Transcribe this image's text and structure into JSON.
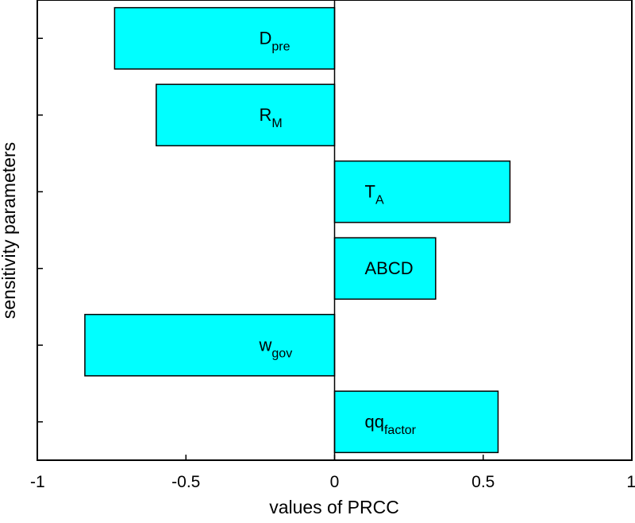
{
  "chart_data": {
    "type": "bar",
    "orientation": "horizontal",
    "xlabel": "values of PRCC",
    "ylabel": "sensitivity parameters",
    "xlim": [
      -1,
      1
    ],
    "xticks": [
      "-1",
      "-0.5",
      "0",
      "0.5",
      "1"
    ],
    "bar_color": "#00FFFF",
    "grid": false,
    "bars": [
      {
        "label": "D",
        "subscript": "pre",
        "value": -0.74
      },
      {
        "label": "R",
        "subscript": "M",
        "value": -0.6
      },
      {
        "label": "T",
        "subscript": "A",
        "value": 0.59
      },
      {
        "label": "ABCD",
        "subscript": "",
        "value": 0.34
      },
      {
        "label": "w",
        "subscript": "gov",
        "value": -0.84
      },
      {
        "label": "qq",
        "subscript": "factor",
        "value": 0.55
      }
    ]
  }
}
